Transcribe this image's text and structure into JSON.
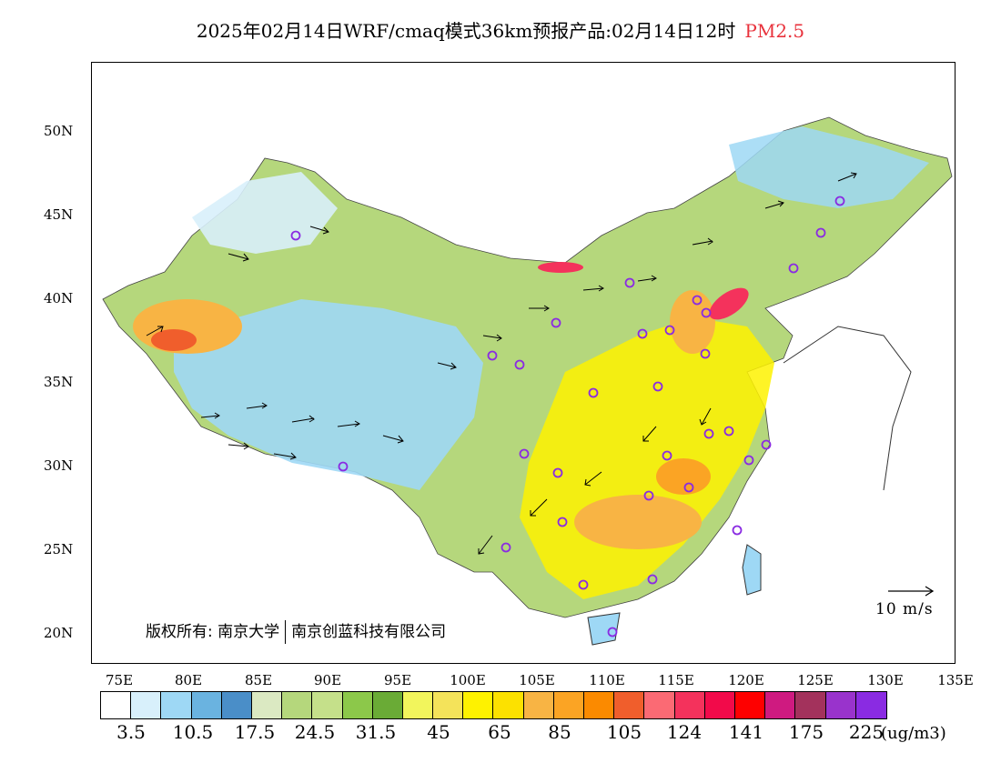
{
  "header": {
    "title": "2025年02月14日WRF/cmaq模式36km预报产品:02月14日12时",
    "pollutant": "PM2.5"
  },
  "axes": {
    "lat_labels": [
      "50N",
      "45N",
      "40N",
      "35N",
      "30N",
      "25N",
      "20N"
    ],
    "lon_labels": [
      "75E",
      "80E",
      "85E",
      "90E",
      "95E",
      "100E",
      "105E",
      "110E",
      "115E",
      "120E",
      "125E",
      "130E",
      "135E"
    ]
  },
  "colorbar": {
    "colors": [
      "#ffffff",
      "#d8f0fb",
      "#9ed8f5",
      "#6ab3e0",
      "#4a8ec8",
      "#dbe9c2",
      "#b5d77c",
      "#c5e08a",
      "#8cc84a",
      "#6aab36",
      "#f2f55c",
      "#f4e35a",
      "#fef200",
      "#fce100",
      "#f8b444",
      "#fba424",
      "#fb8a00",
      "#f05e2c",
      "#fb6a74",
      "#f4325c",
      "#f20a4a",
      "#fe0000",
      "#cf1a80",
      "#a3325c",
      "#9933cc",
      "#8a2be2"
    ],
    "labels": [
      "3.5",
      "10.5",
      "17.5",
      "24.5",
      "31.5",
      "45",
      "65",
      "85",
      "105",
      "124",
      "141",
      "175",
      "225"
    ],
    "unit": "(ug/m3)"
  },
  "copyright": {
    "prefix": "版权所有:",
    "org1": "南京大学",
    "org2": "南京创蓝科技有限公司"
  },
  "reference_vector": {
    "label": "10 m/s"
  },
  "map_colors": {
    "low": "#9ed8f5",
    "green": "#b5d77c",
    "yellow": "#fef200",
    "orange": "#f8b444",
    "red": "#f4325c",
    "station": "#8a2be2"
  }
}
